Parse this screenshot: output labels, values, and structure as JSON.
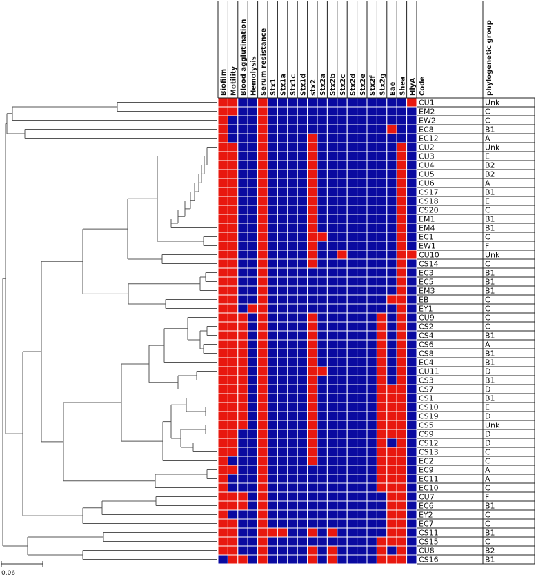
{
  "figure": {
    "column_headers": [
      "Biofilm",
      "Motility",
      "Blood agglutination",
      "Hemolysis",
      "Serum resistance",
      "Stx1",
      "Stx1a",
      "Stx1c",
      "Stx1d",
      "stx2",
      "Stx2a",
      "Stx2b",
      "Stx2c",
      "Stx2d",
      "Stx2e",
      "Stx2f",
      "Stx2g",
      "Eae",
      "Shea",
      "HlyA"
    ],
    "code_header": "Code",
    "group_header": "phylogenetic group",
    "scale_label": "0.06",
    "colors": {
      "positive": "#e8180f",
      "negative": "#0a0aa0",
      "tree": "#555555"
    },
    "rows": [
      {
        "code": "CU1",
        "group": "Unk"
      },
      {
        "code": "EM2",
        "group": "C"
      },
      {
        "code": "EW2",
        "group": "C"
      },
      {
        "code": "EC8",
        "group": "B1"
      },
      {
        "code": "EC12",
        "group": "A"
      },
      {
        "code": "CU2",
        "group": "Unk"
      },
      {
        "code": "CU3",
        "group": "E"
      },
      {
        "code": "CU4",
        "group": "B2"
      },
      {
        "code": "CU5",
        "group": "B2"
      },
      {
        "code": "CU6",
        "group": "A"
      },
      {
        "code": "CS17",
        "group": "B1"
      },
      {
        "code": "CS18",
        "group": "E"
      },
      {
        "code": "CS20",
        "group": "C"
      },
      {
        "code": "EM1",
        "group": "B1"
      },
      {
        "code": "EM4",
        "group": "B1"
      },
      {
        "code": "EC1",
        "group": "C"
      },
      {
        "code": "EW1",
        "group": "F"
      },
      {
        "code": "CU10",
        "group": "Unk"
      },
      {
        "code": "CS14",
        "group": "C"
      },
      {
        "code": "EC3",
        "group": "B1"
      },
      {
        "code": "EC5",
        "group": "B1"
      },
      {
        "code": "EM3",
        "group": "B1"
      },
      {
        "code": "EB",
        "group": "C"
      },
      {
        "code": "EY1",
        "group": "C"
      },
      {
        "code": "CU9",
        "group": "C"
      },
      {
        "code": "CS2",
        "group": "C"
      },
      {
        "code": "CS4",
        "group": "B1"
      },
      {
        "code": "CS6",
        "group": "A"
      },
      {
        "code": "CS8",
        "group": "B1"
      },
      {
        "code": "EC4",
        "group": "B1"
      },
      {
        "code": "CU11",
        "group": "D"
      },
      {
        "code": "CS3",
        "group": "B1"
      },
      {
        "code": "CS7",
        "group": "D"
      },
      {
        "code": "CS1",
        "group": "B1"
      },
      {
        "code": "CS10",
        "group": "E"
      },
      {
        "code": "CS19",
        "group": "D"
      },
      {
        "code": "CS5",
        "group": "Unk"
      },
      {
        "code": "CS9",
        "group": "D"
      },
      {
        "code": "CS12",
        "group": "D"
      },
      {
        "code": "CS13",
        "group": "C"
      },
      {
        "code": "EC2",
        "group": "C"
      },
      {
        "code": "EC9",
        "group": "A"
      },
      {
        "code": "EC11",
        "group": "A"
      },
      {
        "code": "EC10",
        "group": "C"
      },
      {
        "code": "CU7",
        "group": "F"
      },
      {
        "code": "EC6",
        "group": "B1"
      },
      {
        "code": "EY2",
        "group": "C"
      },
      {
        "code": "EC7",
        "group": "C"
      },
      {
        "code": "CS11",
        "group": "B1"
      },
      {
        "code": "CS15",
        "group": "C"
      },
      {
        "code": "CU8",
        "group": "B2"
      },
      {
        "code": "CS16",
        "group": "B1"
      }
    ],
    "matrix": [
      "11001000000000000001",
      "11001000000000000000",
      "10001000000000000000",
      "10001000000000000100",
      "10001000010000000000",
      "11001000010000000010",
      "11001000010000000010",
      "11001000010000000010",
      "11001000010000000010",
      "11001000010000000010",
      "11001000010000000010",
      "11001000010000000010",
      "11001000010000000010",
      "11001000010000000010",
      "11001000010000000010",
      "11001000011000000010",
      "11001000010000000010",
      "11001000010010000011",
      "11001000010000000010",
      "11001000000000000010",
      "11001000000000000010",
      "11001000000000000010",
      "11001000000000000110",
      "11011000000000000010",
      "11101000010000001010",
      "11101000010000001010",
      "11101000010000001010",
      "11101000010000001010",
      "11101000010000001010",
      "11101000010000001010",
      "11101000011000001010",
      "11101000010000001010",
      "11101000010000001110",
      "11101000010000001110",
      "11101000010000001110",
      "11101000010000001110",
      "11101000010000001110",
      "11001000010000001110",
      "11001000010000001010",
      "11001000010000001110",
      "10001000010000001110",
      "11001000000000001110",
      "10001000000000001110",
      "10001000000000001110",
      "11101000000000000110",
      "11101000000000000110",
      "10001000000000000110",
      "11001000000000000110",
      "11001110010100000110",
      "11001000000000001110",
      "11001000010100001010",
      "01101000010100001110"
    ]
  }
}
